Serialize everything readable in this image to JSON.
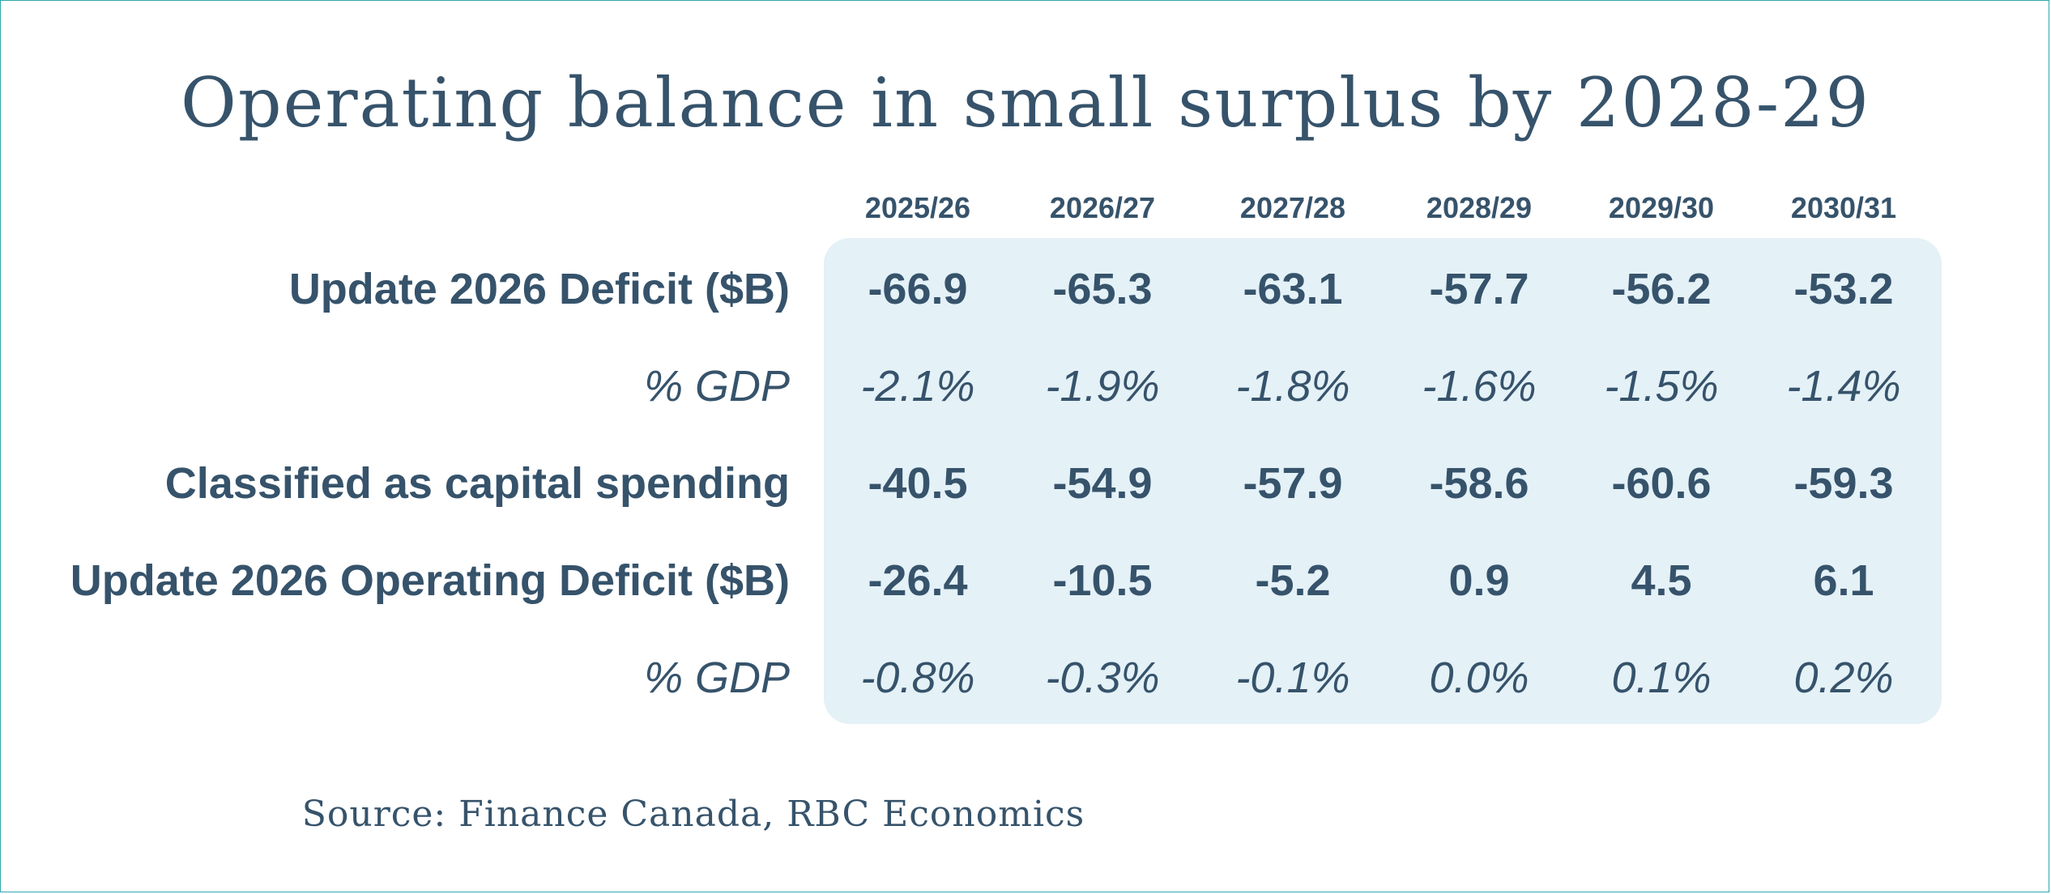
{
  "chart_data": {
    "type": "table",
    "title": "Operating balance in small surplus by 2028-29",
    "columns": [
      "2025/26",
      "2026/27",
      "2027/28",
      "2028/29",
      "2029/30",
      "2030/31"
    ],
    "rows": [
      {
        "label": "Update 2026 Deficit ($B)",
        "style": "bold",
        "values": [
          "-66.9",
          "-65.3",
          "-63.1",
          "-57.7",
          "-56.2",
          "-53.2"
        ]
      },
      {
        "label": "% GDP",
        "style": "italic",
        "values": [
          "-2.1%",
          "-1.9%",
          "-1.8%",
          "-1.6%",
          "-1.5%",
          "-1.4%"
        ]
      },
      {
        "label": "Classified as capital spending",
        "style": "bold",
        "values": [
          "-40.5",
          "-54.9",
          "-57.9",
          "-58.6",
          "-60.6",
          "-59.3"
        ]
      },
      {
        "label": "Update 2026 Operating Deficit ($B)",
        "style": "bold",
        "values": [
          "-26.4",
          "-10.5",
          "-5.2",
          "0.9",
          "4.5",
          "6.1"
        ]
      },
      {
        "label": "% GDP",
        "style": "italic",
        "values": [
          "-0.8%",
          "-0.3%",
          "-0.1%",
          "0.0%",
          "0.1%",
          "0.2%"
        ]
      }
    ],
    "source": "Source: Finance Canada, RBC Economics"
  },
  "colors": {
    "text": "#36536b",
    "panel": "#e4f1f7",
    "border": "#2fa7b0"
  }
}
